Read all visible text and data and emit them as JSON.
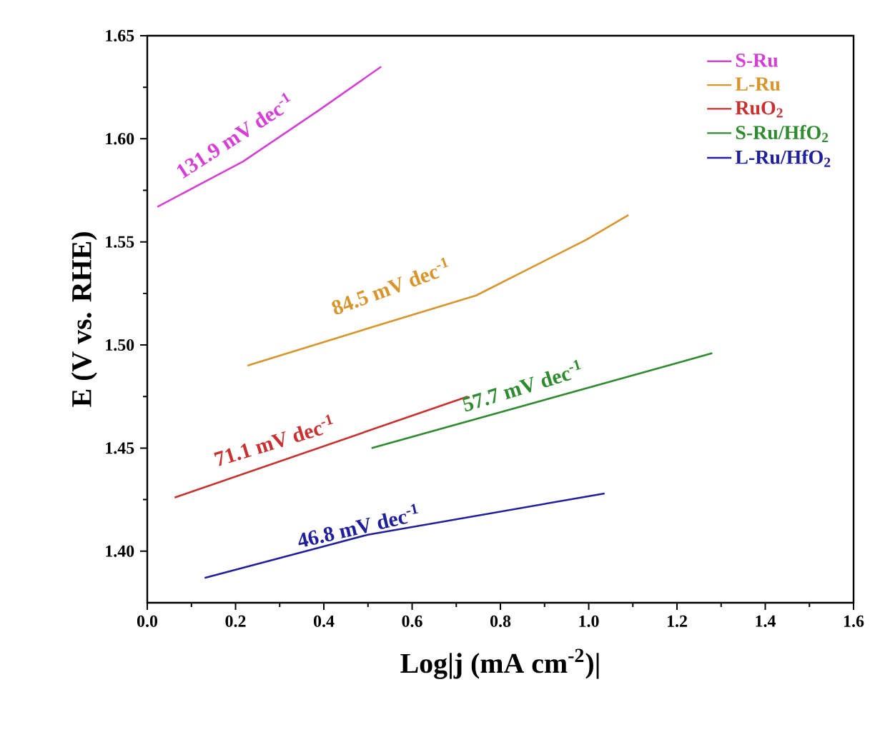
{
  "chart_data": {
    "type": "line",
    "xlabel": "Log|j  (mA cm$^{-2}$)|",
    "ylabel": "E (V vs. RHE)",
    "xlim": [
      0,
      1.6
    ],
    "ylim": [
      1.375,
      1.65
    ],
    "xticks": [
      {
        "value": 0,
        "label": "0.0"
      },
      0.2,
      0.4,
      0.6,
      0.8,
      {
        "value": 1,
        "label": "1.0"
      },
      1.2,
      1.4,
      1.6
    ],
    "yticks": [
      {
        "value": 1.4,
        "label": "1.40"
      },
      1.45,
      {
        "value": 1.5,
        "label": "1.50"
      },
      1.55,
      {
        "value": 1.6,
        "label": "1.60"
      },
      1.65
    ],
    "legend": "top right",
    "grid": false,
    "marker": "none",
    "line_style": "solid",
    "series": [
      {
        "name": "S-Ru",
        "color": "#d63fd6",
        "x": [
          0.023,
          0.217,
          0.39,
          0.53
        ],
        "values": [
          1.567,
          1.589,
          1.614,
          1.635
        ]
      },
      {
        "name": "L-Ru",
        "color": "#d9952b",
        "x": [
          0.227,
          0.56,
          0.745,
          0.994,
          1.09
        ],
        "values": [
          1.49,
          1.512,
          1.524,
          1.551,
          1.563
        ]
      },
      {
        "name": "RuO$_{2}$",
        "color": "#c8312f",
        "x": [
          0.062,
          0.726
        ],
        "values": [
          1.426,
          1.475
        ]
      },
      {
        "name": "S-Ru/HfO$_{2}$",
        "color": "#2e8b2e",
        "x": [
          0.508,
          1.28
        ],
        "values": [
          1.45,
          1.496
        ]
      },
      {
        "name": "L-Ru/HfO$_{2}$",
        "color": "#1f1f9e",
        "x": [
          0.13,
          0.5,
          1.036
        ],
        "values": [
          1.387,
          1.408,
          1.428
        ]
      }
    ],
    "annotations": [
      "131.9 mV dec$^{-1}$",
      "84.5 mV dec$^{-1}$",
      "71.1 mV dec$^{-1}$",
      "57.7 mV dec$^{-1}$",
      "46.8 mV dec$^{-1}$"
    ]
  }
}
